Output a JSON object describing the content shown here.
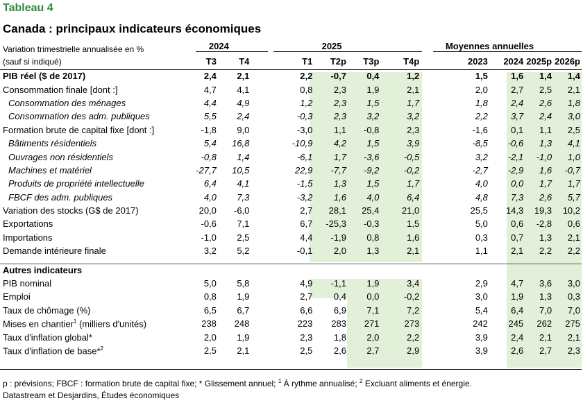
{
  "header": {
    "tag": "Tableau 4",
    "title": "Canada : principaux indicateurs économiques",
    "subtitle_line1": "Variation trimestrielle annualisée en %",
    "subtitle_line2": "(sauf si indiqué)"
  },
  "groups": {
    "y2024": "2024",
    "y2025": "2025",
    "avg": "Moyennes annuelles"
  },
  "columns": [
    "T3",
    "T4",
    "T1",
    "T2p",
    "T3p",
    "T4p",
    "2023",
    "2024",
    "2025p",
    "2026p"
  ],
  "rows": [
    {
      "label": "PIB réel ($ de 2017)",
      "values": [
        "2,4",
        "2,1",
        "2,2",
        "-0,7",
        "0,4",
        "1,2",
        "1,5",
        "1,6",
        "1,4",
        "1,4"
      ]
    },
    {
      "label": "Consommation finale [dont :]",
      "values": [
        "4,7",
        "4,1",
        "0,8",
        "2,3",
        "1,9",
        "2,1",
        "2,0",
        "2,7",
        "2,5",
        "2,1"
      ]
    },
    {
      "label": "Consommation des ménages",
      "values": [
        "4,4",
        "4,9",
        "1,2",
        "2,3",
        "1,5",
        "1,7",
        "1,8",
        "2,4",
        "2,6",
        "1,8"
      ]
    },
    {
      "label": "Consommation des adm. publiques",
      "values": [
        "5,5",
        "2,4",
        "-0,3",
        "2,3",
        "3,2",
        "3,2",
        "2,2",
        "3,7",
        "2,4",
        "3,0"
      ]
    },
    {
      "label": "Formation brute de capital fixe [dont :]",
      "values": [
        "-1,8",
        "9,0",
        "-3,0",
        "1,1",
        "-0,8",
        "2,3",
        "-1,6",
        "0,1",
        "1,1",
        "2,5"
      ]
    },
    {
      "label": "Bâtiments résidentiels",
      "values": [
        "5,4",
        "16,8",
        "-10,9",
        "4,2",
        "1,5",
        "3,9",
        "-8,5",
        "-0,6",
        "1,3",
        "4,1"
      ]
    },
    {
      "label": "Ouvrages non résidentiels",
      "values": [
        "-0,8",
        "1,4",
        "-6,1",
        "1,7",
        "-3,6",
        "-0,5",
        "3,2",
        "-2,1",
        "-1,0",
        "1,0"
      ]
    },
    {
      "label": "Machines et matériel",
      "values": [
        "-27,7",
        "10,5",
        "22,9",
        "-7,7",
        "-9,2",
        "-0,2",
        "-2,7",
        "-2,9",
        "1,6",
        "-0,7"
      ]
    },
    {
      "label": "Produits de propriété intellectuelle",
      "values": [
        "6,4",
        "4,1",
        "-1,5",
        "1,3",
        "1,5",
        "1,7",
        "4,0",
        "0,0",
        "1,7",
        "1,7"
      ]
    },
    {
      "label": "FBCF des adm. publiques",
      "values": [
        "4,0",
        "7,3",
        "-3,2",
        "1,6",
        "4,0",
        "6,4",
        "4,8",
        "7,3",
        "2,6",
        "5,7"
      ]
    },
    {
      "label": "Variation des stocks (G$ de 2017)",
      "values": [
        "20,0",
        "-6,0",
        "2,7",
        "28,1",
        "25,4",
        "21,0",
        "25,5",
        "14,3",
        "19,3",
        "10,2"
      ]
    },
    {
      "label": "Exportations",
      "values": [
        "-0,6",
        "7,1",
        "6,7",
        "-25,3",
        "-0,3",
        "1,5",
        "5,0",
        "0,6",
        "-2,8",
        "0,6"
      ]
    },
    {
      "label": "Importations",
      "values": [
        "-1,0",
        "2,5",
        "4,4",
        "-1,9",
        "0,8",
        "1,6",
        "0,3",
        "0,7",
        "1,3",
        "2,1"
      ]
    },
    {
      "label": "Demande intérieure finale",
      "values": [
        "3,2",
        "5,2",
        "-0,1",
        "2,0",
        "1,3",
        "2,1",
        "1,1",
        "2,1",
        "2,2",
        "2,2"
      ]
    }
  ],
  "other_header": "Autres indicateurs",
  "other_rows": [
    {
      "label": "PIB nominal",
      "values": [
        "5,0",
        "5,8",
        "4,9",
        "-1,1",
        "1,9",
        "3,4",
        "2,9",
        "4,7",
        "3,6",
        "3,0"
      ]
    },
    {
      "label": "Emploi",
      "values": [
        "0,8",
        "1,9",
        "2,7",
        "0,4",
        "0,0",
        "-0,2",
        "3,0",
        "1,9",
        "1,3",
        "0,3"
      ]
    },
    {
      "label": "Taux de chômage (%)",
      "values": [
        "6,5",
        "6,7",
        "6,6",
        "6,9",
        "7,1",
        "7,2",
        "5,4",
        "6,4",
        "7,0",
        "7,0"
      ]
    },
    {
      "label": "Mises en chantier",
      "sup": "1",
      "label_tail": " (milliers d'unités)",
      "values": [
        "238",
        "248",
        "223",
        "283",
        "271",
        "273",
        "242",
        "245",
        "262",
        "275"
      ]
    },
    {
      "label": "Taux d'inflation global*",
      "values": [
        "2,0",
        "1,9",
        "2,3",
        "1,8",
        "2,0",
        "2,2",
        "3,9",
        "2,4",
        "2,1",
        "2,1"
      ]
    },
    {
      "label": "Taux d'inflation de base*",
      "sup": "2",
      "label_tail": "",
      "values": [
        "2,5",
        "2,1",
        "2,5",
        "2,6",
        "2,7",
        "2,9",
        "3,9",
        "2,6",
        "2,7",
        "2,3"
      ]
    }
  ],
  "footnote": {
    "p1": "p : prévisions; FBCF : formation brute de capital fixe; * Glissement annuel; ",
    "s1": "1",
    "p2": " À rythme annualisé; ",
    "s2": "2",
    "p3": " Excluant aliments et énergie."
  },
  "source": "Datastream et Desjardins, Études économiques"
}
